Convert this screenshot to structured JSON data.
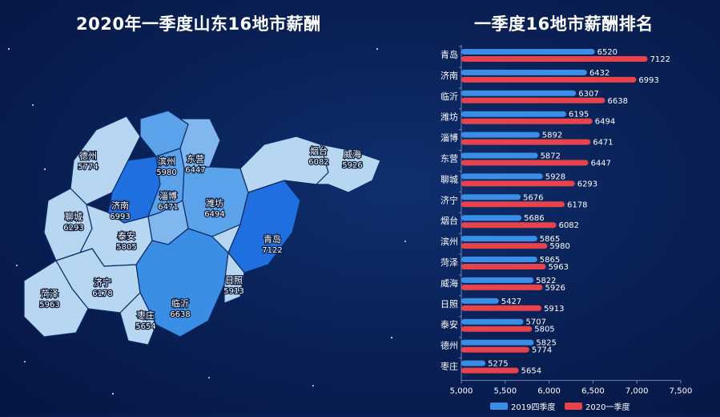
{
  "map": {
    "title": "2020年一季度山东16地市薪酬",
    "cities": [
      {
        "name": "德州",
        "value": "5774"
      },
      {
        "name": "滨州",
        "value": "5980"
      },
      {
        "name": "东营",
        "value": "6447"
      },
      {
        "name": "烟台",
        "value": "6082"
      },
      {
        "name": "威海",
        "value": "5926"
      },
      {
        "name": "济南",
        "value": "6993"
      },
      {
        "name": "淄博",
        "value": "6471"
      },
      {
        "name": "潍坊",
        "value": "6494"
      },
      {
        "name": "聊城",
        "value": "6293"
      },
      {
        "name": "泰安",
        "value": "5805"
      },
      {
        "name": "青岛",
        "value": "7122"
      },
      {
        "name": "济宁",
        "value": "6178"
      },
      {
        "name": "菏泽",
        "value": "5963"
      },
      {
        "name": "日照",
        "value": "5913"
      },
      {
        "name": "枣庄",
        "value": "5654"
      },
      {
        "name": "临沂",
        "value": "6638"
      }
    ]
  },
  "chart_data": {
    "type": "bar",
    "orientation": "horizontal",
    "title": "一季度16地市薪酬排名",
    "categories": [
      "青岛",
      "济南",
      "临沂",
      "潍坊",
      "淄博",
      "东营",
      "聊城",
      "济宁",
      "烟台",
      "滨州",
      "菏泽",
      "威海",
      "日照",
      "泰安",
      "德州",
      "枣庄"
    ],
    "series": [
      {
        "name": "2019四季度",
        "color": "#3a8ee6",
        "values": [
          6520,
          6432,
          6307,
          6195,
          5892,
          5872,
          5928,
          5676,
          5686,
          5865,
          5865,
          5822,
          5427,
          5707,
          5825,
          5275
        ]
      },
      {
        "name": "2020一季度",
        "color": "#e8424a",
        "values": [
          7122,
          6993,
          6638,
          6494,
          6471,
          6447,
          6293,
          6178,
          6082,
          5980,
          5963,
          5926,
          5913,
          5805,
          5774,
          5654
        ]
      }
    ],
    "xlim": [
      5000,
      7500
    ],
    "xticks": [
      5000,
      5500,
      6000,
      6500,
      7000,
      7500
    ],
    "xtick_labels": [
      "5,000",
      "5,500",
      "6,000",
      "6,500",
      "7,000",
      "7,500"
    ],
    "legend_position": "bottom",
    "grid": false
  }
}
